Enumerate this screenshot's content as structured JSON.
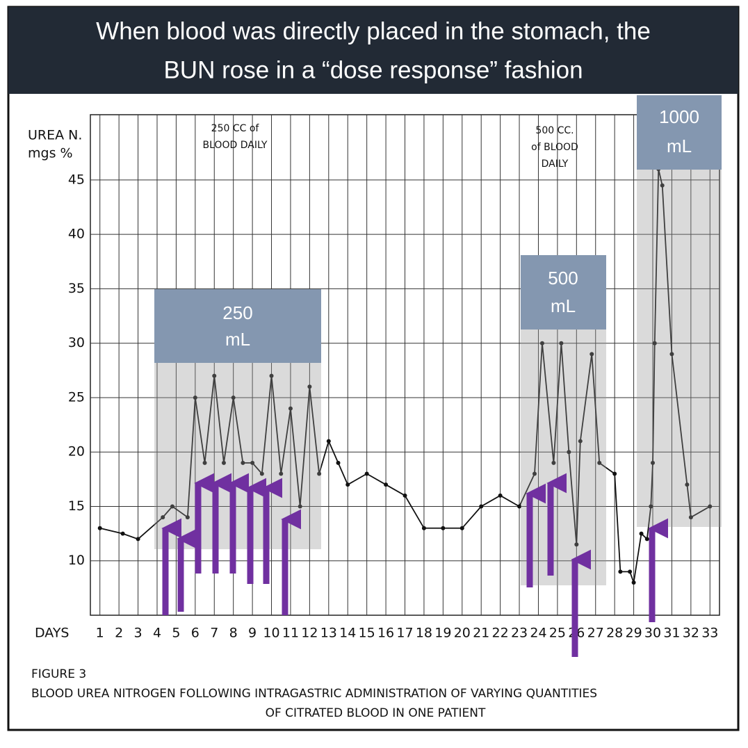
{
  "title": [
    "When blood was directly placed in the stomach, the",
    "BUN rose in a “dose response” fashion"
  ],
  "dose_boxes": [
    [
      "250",
      "mL"
    ],
    [
      "500",
      "mL"
    ],
    [
      "1000",
      "mL"
    ]
  ],
  "chart_data": {
    "type": "line",
    "y_label": [
      "UREA N.",
      "mgs %"
    ],
    "x_label": "DAYS",
    "annotations": [
      [
        "250 CC of",
        "BLOOD DAILY"
      ],
      [
        "500 CC.",
        "of BLOOD",
        "DAILY"
      ]
    ],
    "caption": [
      "FIGURE 3",
      "BLOOD UREA  NITROGEN FOLLOWING INTRAGASTRIC ADMINISTRATION OF VARYING QUANTITIES",
      "OF CITRATED BLOOD IN ONE PATIENT"
    ],
    "x": [
      1,
      2.2,
      3,
      4.3,
      4.8,
      5.6,
      6,
      6.5,
      7,
      7.5,
      8,
      8.5,
      9,
      9.5,
      10,
      10.5,
      11,
      11.5,
      12,
      12.5,
      13,
      13.5,
      14,
      15,
      16,
      17,
      18,
      19,
      20,
      21,
      22,
      23,
      23.8,
      24.2,
      24.8,
      25.2,
      25.6,
      26,
      26.2,
      26.8,
      27.2,
      28,
      28.3,
      28.8,
      29,
      29.4,
      29.7,
      29.9,
      30,
      30.1,
      30.3,
      30.5,
      31,
      31.8,
      32,
      33
    ],
    "series": [
      {
        "name": "Blood urea nitrogen",
        "color": "#111111",
        "values": [
          13,
          12.5,
          12,
          14,
          15,
          14,
          25,
          19,
          27,
          19,
          25,
          19,
          19,
          18,
          27,
          18,
          24,
          15,
          26,
          18,
          21,
          19,
          17,
          18,
          17,
          16,
          13,
          13,
          13,
          15,
          16,
          15,
          18,
          30,
          19,
          30,
          20,
          11.5,
          21,
          29,
          19,
          18,
          9,
          9,
          8,
          12.5,
          12,
          15,
          19,
          30,
          46,
          44.5,
          29,
          17,
          14,
          15
        ]
      }
    ],
    "xlim": [
      0.5,
      33.5
    ],
    "xticks": [
      1,
      2,
      3,
      4,
      5,
      6,
      7,
      8,
      9,
      10,
      11,
      12,
      13,
      14,
      15,
      16,
      17,
      18,
      19,
      20,
      21,
      22,
      23,
      24,
      25,
      26,
      27,
      28,
      29,
      30,
      31,
      32,
      33
    ],
    "ylim": [
      5,
      51
    ],
    "yticks": [
      10,
      15,
      20,
      25,
      30,
      35,
      40,
      45
    ],
    "grid": true
  }
}
